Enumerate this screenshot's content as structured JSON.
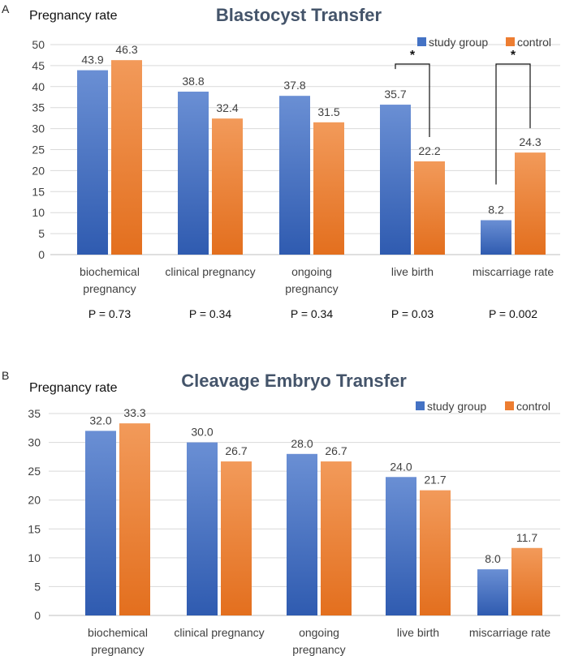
{
  "colors": {
    "study": "#4472C4",
    "control": "#ED7D31",
    "title": "#44546A",
    "grid": "#D9D9D9"
  },
  "chart_data": [
    {
      "type": "bar",
      "panel": "A",
      "title": "Blastocyst Transfer",
      "ylabel": "Pregnancy rate",
      "xlabel": "",
      "ylim": [
        0,
        50
      ],
      "ytick_step": 5,
      "grid": true,
      "legend_position": "top-right",
      "categories": [
        [
          "biochemical",
          "pregnancy"
        ],
        [
          "clinical pregnancy"
        ],
        [
          "ongoing",
          "pregnancy"
        ],
        [
          "live birth"
        ],
        [
          "miscarriage rate"
        ]
      ],
      "series": [
        {
          "name": "study group",
          "values": [
            43.9,
            38.8,
            37.8,
            35.7,
            8.2
          ],
          "labels": [
            "43.9",
            "38.8",
            "37.8",
            "35.7",
            "8.2"
          ]
        },
        {
          "name": "control",
          "values": [
            46.3,
            32.4,
            31.5,
            22.2,
            24.3
          ],
          "labels": [
            "46.3",
            "32.4",
            "31.5",
            "22.2",
            "24.3"
          ]
        }
      ],
      "p_values": [
        "P = 0.73",
        "P = 0.34",
        "P = 0.34",
        "P = 0.03",
        "P = 0.002"
      ],
      "significance": [
        {
          "category_index": 3,
          "marker": "*"
        },
        {
          "category_index": 4,
          "marker": "*"
        }
      ]
    },
    {
      "type": "bar",
      "panel": "B",
      "title": "Cleavage Embryo Transfer",
      "ylabel": "Pregnancy rate",
      "xlabel": "",
      "ylim": [
        0,
        35
      ],
      "ytick_step": 5,
      "grid": true,
      "legend_position": "top-right",
      "categories": [
        [
          "biochemical",
          "pregnancy"
        ],
        [
          "clinical pregnancy"
        ],
        [
          "ongoing",
          "pregnancy"
        ],
        [
          "live birth"
        ],
        [
          "miscarriage rate"
        ]
      ],
      "series": [
        {
          "name": "study group",
          "values": [
            32.0,
            30.0,
            28.0,
            24.0,
            8.0
          ],
          "labels": [
            "32.0",
            "30.0",
            "28.0",
            "24.0",
            "8.0"
          ]
        },
        {
          "name": "control",
          "values": [
            33.3,
            26.7,
            26.7,
            21.7,
            11.7
          ],
          "labels": [
            "33.3",
            "26.7",
            "26.7",
            "21.7",
            "11.7"
          ]
        }
      ],
      "p_values": [],
      "significance": []
    }
  ]
}
